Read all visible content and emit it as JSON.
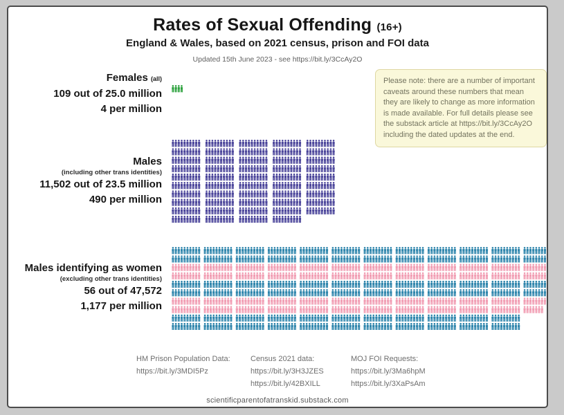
{
  "header": {
    "title": "Rates of Sexual Offending",
    "title_suffix": "(16+)",
    "subtitle": "England & Wales, based on 2021 census, prison and FOI data",
    "updated": "Updated 15th June 2023 - see https://bit.ly/3CcAy2O"
  },
  "note_box": {
    "text": "Please note: there are a number of important caveats around these numbers that mean they are likely to change as more information is made available. For full details please see the substack article at https://bit.ly/3CcAy2O including the dated updates at the end.",
    "bg_color": "#faf8da",
    "border_color": "#ded7a2"
  },
  "chart_data": {
    "type": "pictogram",
    "unit": "1 icon = 1 offender per million people",
    "icons_per_block_row": 10,
    "rows_per_block": 10,
    "groups": [
      {
        "id": "females",
        "label": "Females",
        "label_note": "(all)",
        "stat_count": "109 out of 25.0 million",
        "stat_rate": "4 per million",
        "rate_per_million": 4,
        "numerator": 109,
        "denominator": "25.0 million",
        "icons_total": 4,
        "block_columns": 1,
        "block_gap": 7,
        "colors": [
          "#2da23e"
        ]
      },
      {
        "id": "males",
        "label": "Males",
        "label_note": "(including other trans identities)",
        "stat_count": "11,502 out of 23.5 million",
        "stat_rate": "490 per million",
        "rate_per_million": 490,
        "numerator": 11502,
        "denominator": "23.5 million",
        "icons_total": 490,
        "block_columns": 5,
        "block_gap": 7,
        "colors": [
          "#4a449a"
        ]
      },
      {
        "id": "miaw",
        "label": "Males identifying as women",
        "label_note": "(excluding other trans identities)",
        "stat_count": "56 out of 47,572",
        "stat_rate": "1,177 per million",
        "rate_per_million": 1177,
        "numerator": 56,
        "denominator": "47,572",
        "icons_total": 1177,
        "block_columns": 12,
        "block_gap": 4.6,
        "colors": [
          "#2e85ac",
          "#f19cb2"
        ],
        "color_band_rows": 2
      }
    ]
  },
  "footer": {
    "sources": [
      {
        "title": "HM Prison Population Data:",
        "link1": "https://bit.ly/3MDI5Pz",
        "link2": ""
      },
      {
        "title": "Census 2021 data:",
        "link1": "https://bit.ly/3H3JZES",
        "link2": "https://bit.ly/42BXILL"
      },
      {
        "title": "MOJ FOI Requests:",
        "link1": "https://bit.ly/3Ma6hpM",
        "link2": "https://bit.ly/3XaPsAm"
      }
    ],
    "site": "scientificparentofatranskid.substack.com"
  }
}
